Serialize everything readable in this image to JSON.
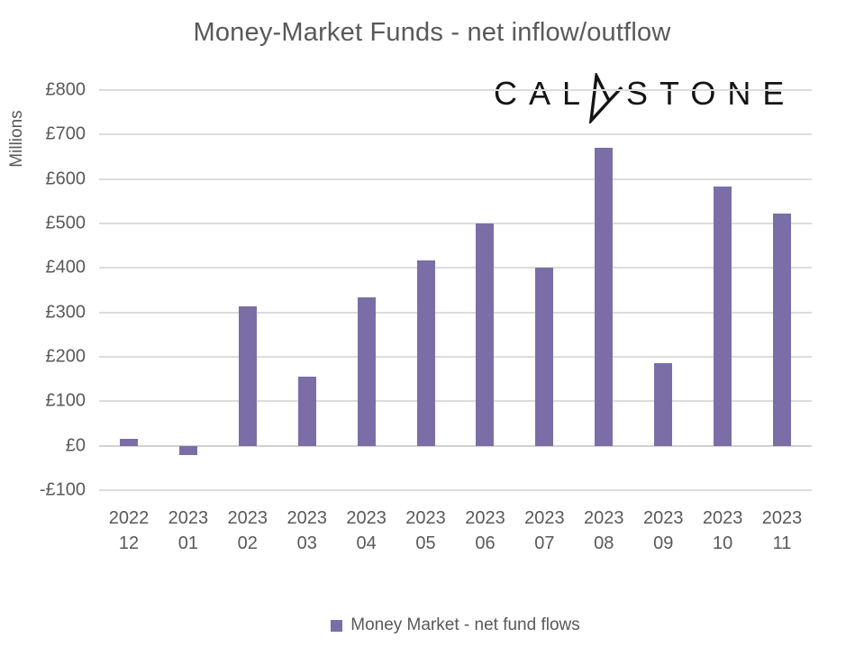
{
  "title": "Money-Market Funds - net inflow/outflow",
  "logo": {
    "left": "CAL",
    "right": "STONE",
    "color": "#141414"
  },
  "legend": {
    "label": "Money Market - net fund flows"
  },
  "chart_data": {
    "type": "bar",
    "title": "Money-Market Funds - net inflow/outflow",
    "xlabel": "",
    "ylabel": "Millions",
    "ylim": [
      -100,
      800
    ],
    "ytick_step": 100,
    "ytick_labels": [
      "£800",
      "£700",
      "£600",
      "£500",
      "£400",
      "£300",
      "£200",
      "£100",
      "£0",
      "-£100"
    ],
    "categories": [
      {
        "year": "2022",
        "month": "12"
      },
      {
        "year": "2023",
        "month": "01"
      },
      {
        "year": "2023",
        "month": "02"
      },
      {
        "year": "2023",
        "month": "03"
      },
      {
        "year": "2023",
        "month": "04"
      },
      {
        "year": "2023",
        "month": "05"
      },
      {
        "year": "2023",
        "month": "06"
      },
      {
        "year": "2023",
        "month": "07"
      },
      {
        "year": "2023",
        "month": "08"
      },
      {
        "year": "2023",
        "month": "09"
      },
      {
        "year": "2023",
        "month": "10"
      },
      {
        "year": "2023",
        "month": "11"
      }
    ],
    "series": [
      {
        "name": "Money Market - net fund flows",
        "values": [
          15,
          -21,
          314,
          156,
          333,
          416,
          500,
          401,
          670,
          186,
          583,
          522
        ]
      }
    ],
    "grid": true,
    "legend_position": "bottom",
    "bar_color": "#7B6EA7",
    "gridline_color": "#DCDCDC",
    "text_color": "#595959"
  }
}
